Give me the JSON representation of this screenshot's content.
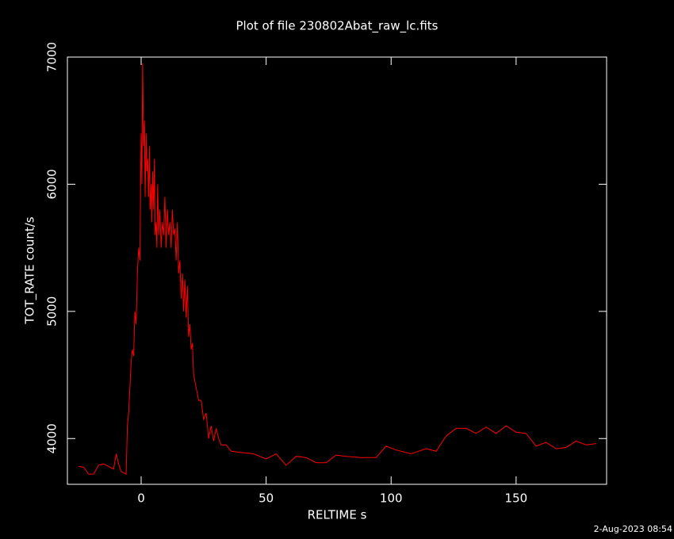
{
  "chart_data": {
    "type": "line",
    "title": "Plot of file 230802Abat_raw_lc.fits",
    "xlabel": "RELTIME  s",
    "ylabel": "TOT_RATE  count/s",
    "timestamp": "2-Aug-2023 08:54",
    "color": "#ff0000",
    "xlim": [
      -29.5,
      186.2
    ],
    "ylim": [
      3640,
      7000
    ],
    "xticks": [
      0,
      50,
      100,
      150
    ],
    "yticks": [
      4000,
      5000,
      6000,
      7000
    ],
    "x": [
      -25,
      -23,
      -21,
      -19,
      -17,
      -15,
      -13,
      -11,
      -10,
      -9,
      -8,
      -7,
      -6,
      -5.5,
      -5,
      -4.5,
      -4,
      -3.5,
      -3,
      -2.5,
      -2,
      -1.5,
      -1,
      -0.5,
      0,
      0.3,
      0.6,
      1,
      1.3,
      1.6,
      2,
      2.3,
      2.6,
      3,
      3.3,
      3.6,
      4,
      4.3,
      4.6,
      5,
      5.3,
      5.6,
      6,
      6.3,
      6.6,
      7,
      7.5,
      8,
      8.5,
      9,
      9.5,
      10,
      10.5,
      11,
      11.5,
      12,
      12.5,
      13,
      13.5,
      14,
      14.5,
      15,
      15.5,
      16,
      16.5,
      17,
      17.5,
      18,
      18.5,
      19,
      19.5,
      20,
      20.5,
      21,
      22,
      23,
      24,
      25,
      26,
      27,
      28,
      29,
      30,
      31,
      32,
      34,
      36,
      40,
      45,
      50,
      54,
      58,
      62,
      66,
      70,
      74,
      78,
      82,
      88,
      94,
      98,
      102,
      108,
      114,
      118,
      122,
      126,
      130,
      134,
      138,
      142,
      146,
      150,
      154,
      158,
      162,
      166,
      170,
      174,
      178,
      182
    ],
    "values": [
      3780,
      3775,
      3720,
      3720,
      3790,
      3800,
      3780,
      3760,
      3880,
      3800,
      3740,
      3730,
      3720,
      4100,
      4200,
      4400,
      4600,
      4700,
      4650,
      5000,
      4900,
      5300,
      5500,
      5400,
      6400,
      6000,
      6950,
      6300,
      6500,
      5900,
      6400,
      6100,
      6200,
      5900,
      6300,
      5800,
      6000,
      5700,
      6100,
      5800,
      6200,
      5600,
      5700,
      5500,
      6000,
      5600,
      5800,
      5500,
      5700,
      5600,
      5900,
      5500,
      5800,
      5600,
      5700,
      5500,
      5800,
      5600,
      5650,
      5400,
      5700,
      5300,
      5400,
      5100,
      5300,
      5000,
      5250,
      4950,
      5200,
      4800,
      4900,
      4700,
      4750,
      4500,
      4400,
      4300,
      4300,
      4150,
      4200,
      4000,
      4100,
      3980,
      4080,
      4000,
      3950,
      3950,
      3900,
      3890,
      3880,
      3840,
      3880,
      3790,
      3860,
      3850,
      3810,
      3810,
      3870,
      3860,
      3850,
      3850,
      3940,
      3910,
      3880,
      3920,
      3900,
      4020,
      4080,
      4080,
      4040,
      4090,
      4040,
      4100,
      4050,
      4040,
      3940,
      3970,
      3920,
      3930,
      3980,
      3950,
      3960
    ]
  }
}
